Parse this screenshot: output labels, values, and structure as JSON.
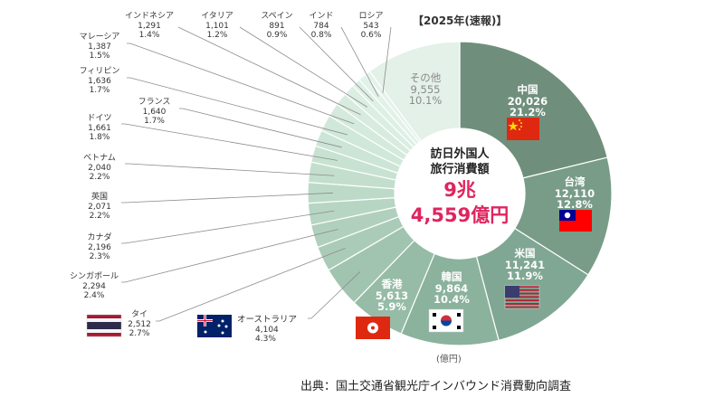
{
  "chart_data": {
    "type": "pie",
    "style": "donut",
    "tag": "【2025年(速報)】",
    "center_lines": [
      "訪日外国人",
      "旅行消費額"
    ],
    "center_total": [
      "9兆",
      "4,559億円"
    ],
    "unit_note": "(億円)",
    "source": "出典：国土交通省観光庁インバウンド消費動向調査",
    "slices": [
      {
        "name": "中国",
        "value": 20026,
        "value_text": "20,026",
        "share": "21.2%",
        "color": "#6f8f7c",
        "flag": "china-flag-icon"
      },
      {
        "name": "台湾",
        "value": 12110,
        "value_text": "12,110",
        "share": "12.8%",
        "color": "#789c88",
        "flag": "taiwan-flag-icon"
      },
      {
        "name": "米国",
        "value": 11241,
        "value_text": "11,241",
        "share": "11.9%",
        "color": "#80a793",
        "flag": "usa-flag-icon"
      },
      {
        "name": "韓国",
        "value": 9864,
        "value_text": "9,864",
        "share": "10.4%",
        "color": "#8bb29d",
        "flag": "korea-flag-icon"
      },
      {
        "name": "香港",
        "value": 5613,
        "value_text": "5,613",
        "share": "5.9%",
        "color": "#96bba6",
        "flag": "hongkong-flag-icon"
      },
      {
        "name": "オーストラリア",
        "value": 4104,
        "value_text": "4,104",
        "share": "4.3%",
        "color": "#a1c4b0",
        "flag": "australia-flag-icon"
      },
      {
        "name": "タイ",
        "value": 2512,
        "value_text": "2,512",
        "share": "2.7%",
        "color": "#aacbb8",
        "flag": "thailand-flag-icon"
      },
      {
        "name": "シンガポール",
        "value": 2294,
        "value_text": "2,294",
        "share": "2.4%",
        "color": "#b0d0bd"
      },
      {
        "name": "カナダ",
        "value": 2196,
        "value_text": "2,196",
        "share": "2.3%",
        "color": "#b7d5c3"
      },
      {
        "name": "英国",
        "value": 2071,
        "value_text": "2,071",
        "share": "2.2%",
        "color": "#bddac9"
      },
      {
        "name": "ベトナム",
        "value": 2040,
        "value_text": "2,040",
        "share": "2.2%",
        "color": "#c3decd"
      },
      {
        "name": "ドイツ",
        "value": 1661,
        "value_text": "1,661",
        "share": "1.8%",
        "color": "#c8e2d2"
      },
      {
        "name": "フランス",
        "value": 1640,
        "value_text": "1,640",
        "share": "1.7%",
        "color": "#cce5d6"
      },
      {
        "name": "フィリピン",
        "value": 1636,
        "value_text": "1,636",
        "share": "1.7%",
        "color": "#d0e8d9"
      },
      {
        "name": "マレーシア",
        "value": 1387,
        "value_text": "1,387",
        "share": "1.5%",
        "color": "#d4eadc"
      },
      {
        "name": "インドネシア",
        "value": 1291,
        "value_text": "1,291",
        "share": "1.4%",
        "color": "#d7ecdf"
      },
      {
        "name": "イタリア",
        "value": 1101,
        "value_text": "1,101",
        "share": "1.2%",
        "color": "#dbeee2"
      },
      {
        "name": "スペイン",
        "value": 891,
        "value_text": "891",
        "share": "0.9%",
        "color": "#def0e5"
      },
      {
        "name": "インド",
        "value": 784,
        "value_text": "784",
        "share": "0.8%",
        "color": "#e1f2e8"
      },
      {
        "name": "ロシア",
        "value": 543,
        "value_text": "543",
        "share": "0.6%",
        "color": "#e4f3ea"
      },
      {
        "name": "その他",
        "value": 9555,
        "value_text": "9,555",
        "share": "10.1%",
        "color": "#e3f1e8"
      }
    ]
  }
}
